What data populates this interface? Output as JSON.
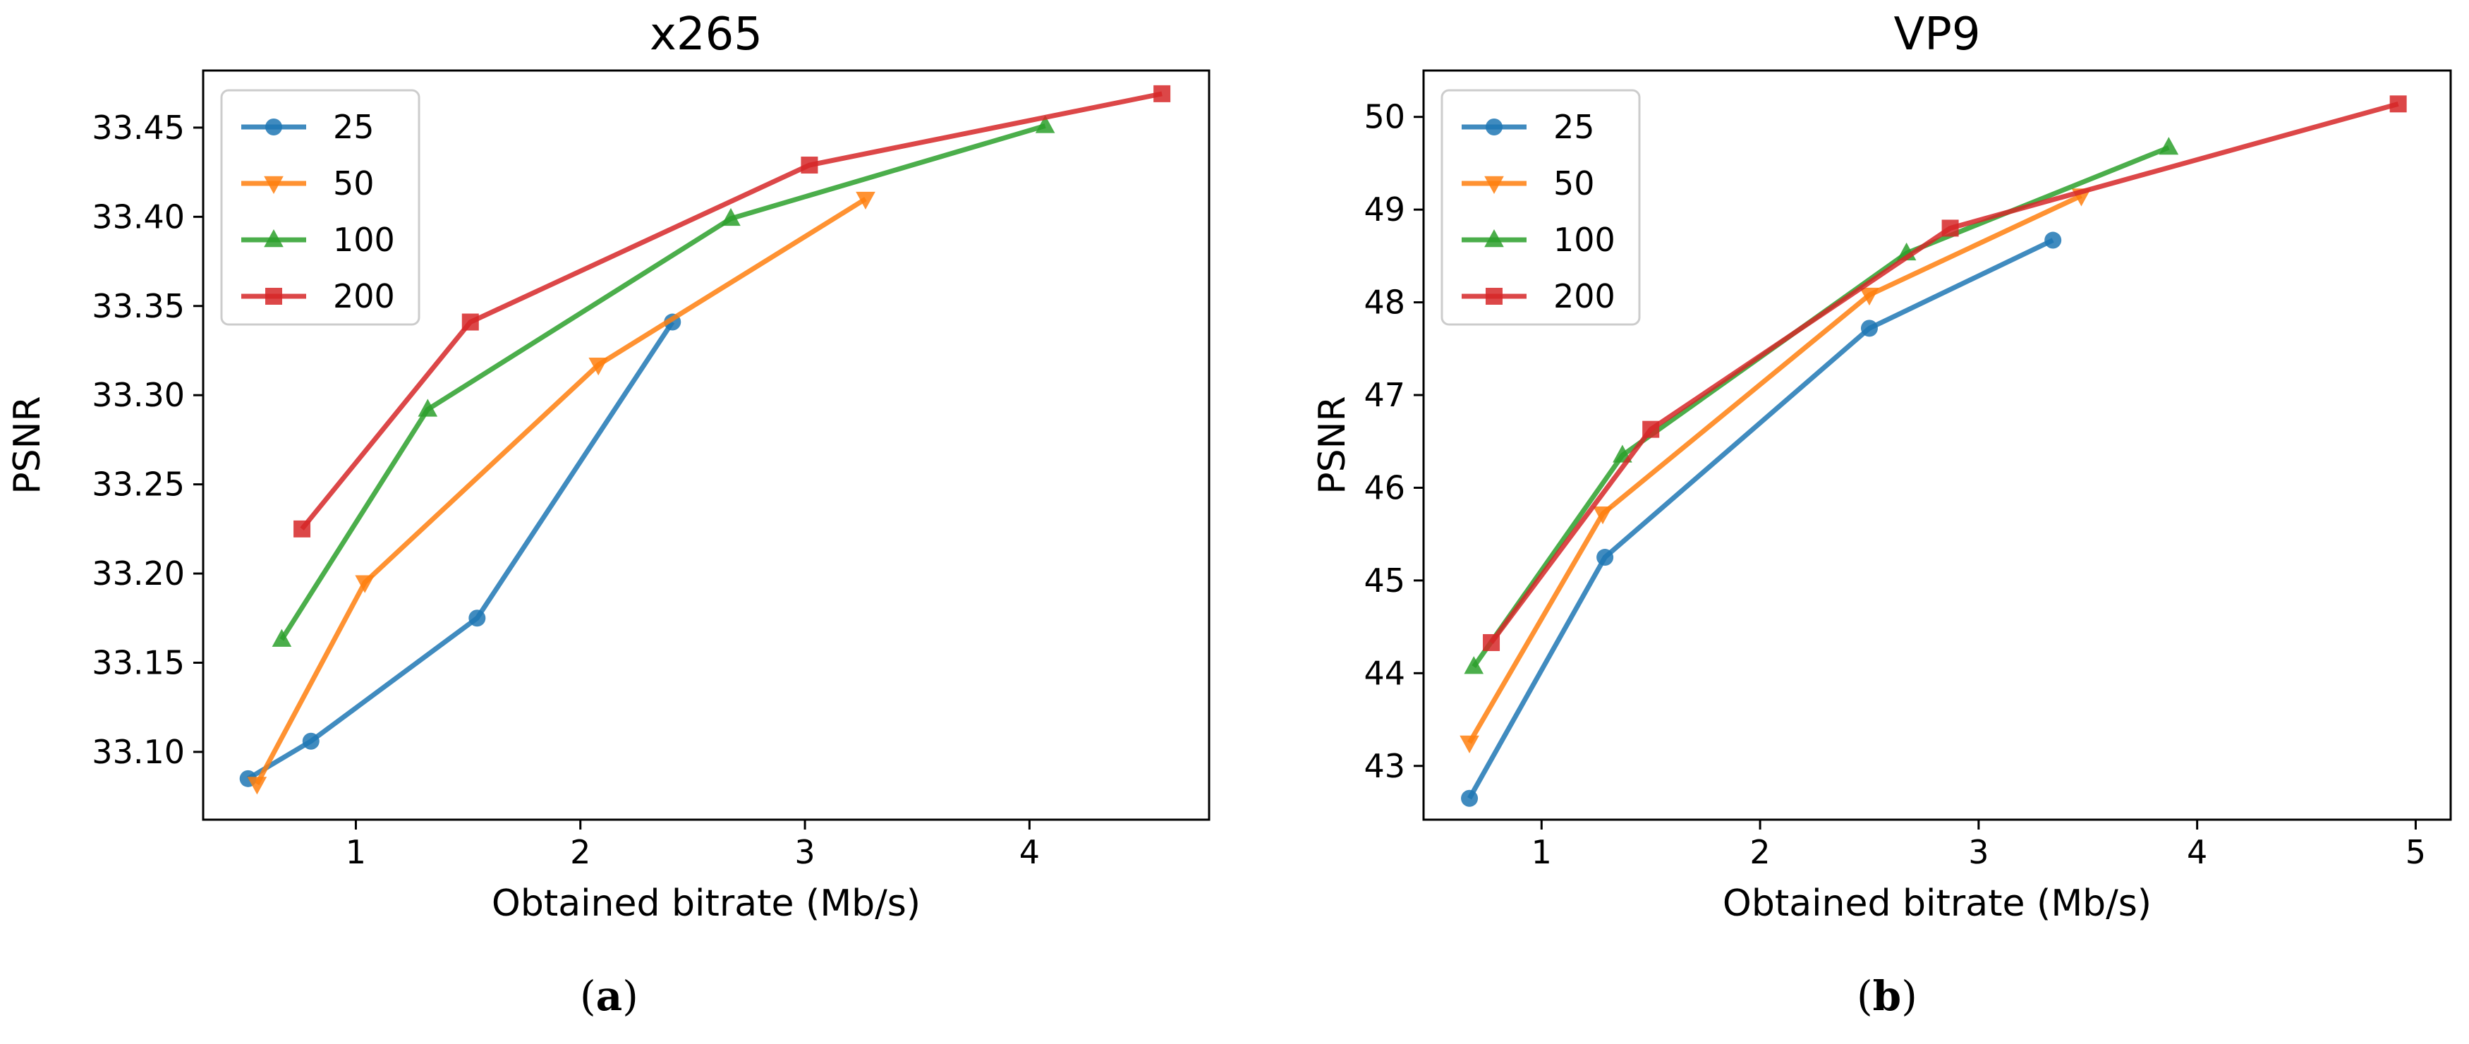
{
  "figure": {
    "captions": [
      {
        "open": "(",
        "letter": "a",
        "close": ")"
      },
      {
        "open": "(",
        "letter": "b",
        "close": ")"
      }
    ]
  },
  "chart_data": [
    {
      "type": "line",
      "title": "x265",
      "xlabel": "Obtained bitrate (Mb/s)",
      "ylabel": "PSNR",
      "xlim": [
        0.32,
        4.8
      ],
      "ylim": [
        33.062,
        33.482
      ],
      "xticks": [
        1,
        2,
        3,
        4
      ],
      "yticks": [
        33.1,
        33.15,
        33.2,
        33.25,
        33.3,
        33.35,
        33.4,
        33.45
      ],
      "ytick_decimals": 2,
      "legend": "top-left",
      "series": [
        {
          "name": "25",
          "color": "#1f77b4",
          "marker": "circle",
          "x": [
            0.52,
            0.8,
            1.54,
            2.41
          ],
          "y": [
            33.085,
            33.106,
            33.175,
            33.341
          ]
        },
        {
          "name": "50",
          "color": "#ff7f0e",
          "marker": "triangle-down",
          "x": [
            0.56,
            1.04,
            2.08,
            3.27
          ],
          "y": [
            33.082,
            33.195,
            33.317,
            33.41
          ]
        },
        {
          "name": "100",
          "color": "#2ca02c",
          "marker": "triangle-up",
          "x": [
            0.67,
            1.32,
            2.67,
            4.07
          ],
          "y": [
            33.163,
            33.292,
            33.399,
            33.451
          ]
        },
        {
          "name": "200",
          "color": "#d62728",
          "marker": "square",
          "x": [
            0.76,
            1.51,
            3.02,
            4.59
          ],
          "y": [
            33.225,
            33.341,
            33.429,
            33.469
          ]
        }
      ]
    },
    {
      "type": "line",
      "title": "VP9",
      "xlabel": "Obtained bitrate (Mb/s)",
      "ylabel": "PSNR",
      "xlim": [
        0.46,
        5.16
      ],
      "ylim": [
        42.42,
        50.5
      ],
      "xticks": [
        1,
        2,
        3,
        4,
        5
      ],
      "yticks": [
        43,
        44,
        45,
        46,
        47,
        48,
        49,
        50
      ],
      "ytick_decimals": 0,
      "legend": "top-left",
      "series": [
        {
          "name": "25",
          "color": "#1f77b4",
          "marker": "circle",
          "x": [
            0.67,
            1.29,
            2.5,
            3.34
          ],
          "y": [
            42.65,
            45.25,
            47.72,
            48.67
          ]
        },
        {
          "name": "50",
          "color": "#ff7f0e",
          "marker": "triangle-down",
          "x": [
            0.67,
            1.28,
            2.5,
            3.47
          ],
          "y": [
            43.25,
            45.72,
            48.08,
            49.15
          ]
        },
        {
          "name": "100",
          "color": "#2ca02c",
          "marker": "triangle-up",
          "x": [
            0.69,
            1.37,
            2.67,
            3.87
          ],
          "y": [
            44.07,
            46.35,
            48.53,
            49.67
          ]
        },
        {
          "name": "200",
          "color": "#d62728",
          "marker": "square",
          "x": [
            0.77,
            1.5,
            2.87,
            4.92
          ],
          "y": [
            44.33,
            46.63,
            48.8,
            50.14
          ]
        }
      ]
    }
  ]
}
